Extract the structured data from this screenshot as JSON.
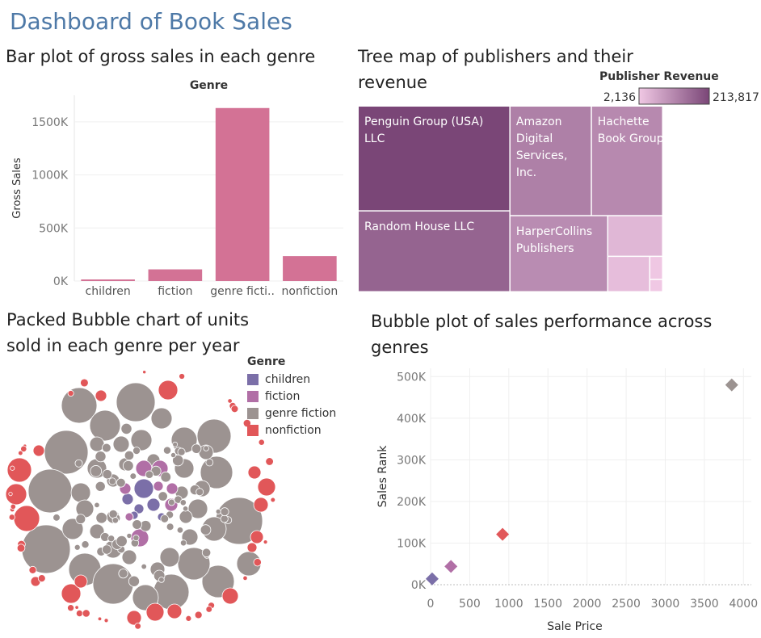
{
  "dashboard": {
    "title": "Dashboard of Book Sales"
  },
  "panels": {
    "bar": {
      "title": "Bar plot of gross sales in each genre"
    },
    "treemap": {
      "title_line1": "Tree map of publishers and their",
      "title_line2": "revenue"
    },
    "bubble_pack": {
      "title_line1": "Packed Bubble chart of units",
      "title_line2": "sold in each genre per year"
    },
    "scatter": {
      "title_line1": "Bubble plot of sales performance across",
      "title_line2": "genres"
    }
  },
  "colors": {
    "children": "#7b6fa8",
    "fiction": "#b16fa6",
    "genre fiction": "#9c9391",
    "nonfiction": "#e15759",
    "bar": "#d37295",
    "treemap_low": "#f0c8e4",
    "treemap_high": "#7a4677"
  },
  "chart_data": [
    {
      "type": "bar",
      "title": "Bar plot of gross sales in each genre",
      "column_header": "Genre",
      "xlabel": "",
      "ylabel": "Gross Sales",
      "categories": [
        "children",
        "fiction",
        "genre fiction",
        "nonfiction"
      ],
      "category_labels": [
        "children",
        "fiction",
        "genre ficti..",
        "nonfiction"
      ],
      "values": [
        15000,
        110000,
        1630000,
        235000
      ],
      "ylim": [
        0,
        1750000
      ],
      "yticks": [
        0,
        500000,
        1000000,
        1500000
      ],
      "ytick_labels": [
        "0K",
        "500K",
        "1000K",
        "1500K"
      ],
      "grid": true
    },
    {
      "type": "treemap",
      "title": "Tree map of publishers and their revenue",
      "legend_title": "Publisher Revenue",
      "color_range": [
        2136,
        213817
      ],
      "color_range_labels": [
        "2,136",
        "213,817"
      ],
      "items": [
        {
          "name": "Penguin Group (USA) LLC",
          "label_lines": [
            "Penguin Group (USA)",
            "LLC"
          ],
          "value": 213817
        },
        {
          "name": "Random House LLC",
          "label_lines": [
            "Random House LLC"
          ],
          "value": 165000
        },
        {
          "name": "Amazon Digital Services, Inc.",
          "label_lines": [
            "Amazon",
            "Digital",
            "Services,",
            "Inc."
          ],
          "value": 120000
        },
        {
          "name": "Hachette Book Group",
          "label_lines": [
            "Hachette",
            "Book Group"
          ],
          "value": 105000
        },
        {
          "name": "HarperCollins Publishers",
          "label_lines": [
            "HarperCollins",
            "Publishers"
          ],
          "value": 100000
        },
        {
          "name": "",
          "label_lines": [],
          "value": 30000
        },
        {
          "name": "",
          "label_lines": [],
          "value": 20000
        },
        {
          "name": "",
          "label_lines": [],
          "value": 4000
        },
        {
          "name": "",
          "label_lines": [],
          "value": 2136
        }
      ]
    },
    {
      "type": "packed_bubble",
      "title": "Packed Bubble chart of units sold in each genre per year",
      "legend_title": "Genre",
      "legend": [
        "children",
        "fiction",
        "genre fiction",
        "nonfiction"
      ]
    },
    {
      "type": "scatter",
      "title": "Bubble plot of sales performance across genres",
      "xlabel": "Sale Price",
      "ylabel": "Sales Rank",
      "xlim": [
        0,
        4100
      ],
      "ylim": [
        0,
        520000
      ],
      "xticks": [
        0,
        500,
        1000,
        1500,
        2000,
        2500,
        3000,
        3500,
        4000
      ],
      "xtick_labels": [
        "0",
        "500",
        "1000",
        "1500",
        "2000",
        "2500",
        "3000",
        "3500",
        "4000"
      ],
      "yticks": [
        0,
        100000,
        200000,
        300000,
        400000,
        500000
      ],
      "ytick_labels": [
        "0K",
        "100K",
        "200K",
        "300K",
        "400K",
        "500K"
      ],
      "points": [
        {
          "genre": "children",
          "x": 20,
          "y": 14000
        },
        {
          "genre": "fiction",
          "x": 260,
          "y": 44000
        },
        {
          "genre": "nonfiction",
          "x": 920,
          "y": 121000
        },
        {
          "genre": "genre fiction",
          "x": 3850,
          "y": 480000
        }
      ]
    }
  ]
}
